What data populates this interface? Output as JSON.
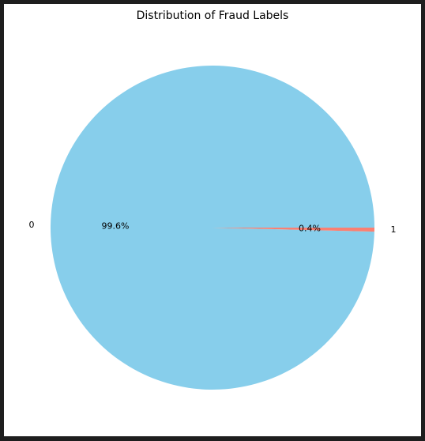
{
  "chart_data": {
    "type": "pie",
    "title": "Distribution of Fraud Labels",
    "slices": [
      {
        "label": "0",
        "value": 99.6,
        "percent_label": "99.6%",
        "color": "#87ceeb"
      },
      {
        "label": "1",
        "value": 0.4,
        "percent_label": "0.4%",
        "color": "#fa8072"
      }
    ],
    "start_angle_deg": 0,
    "direction": "counterclockwise"
  }
}
